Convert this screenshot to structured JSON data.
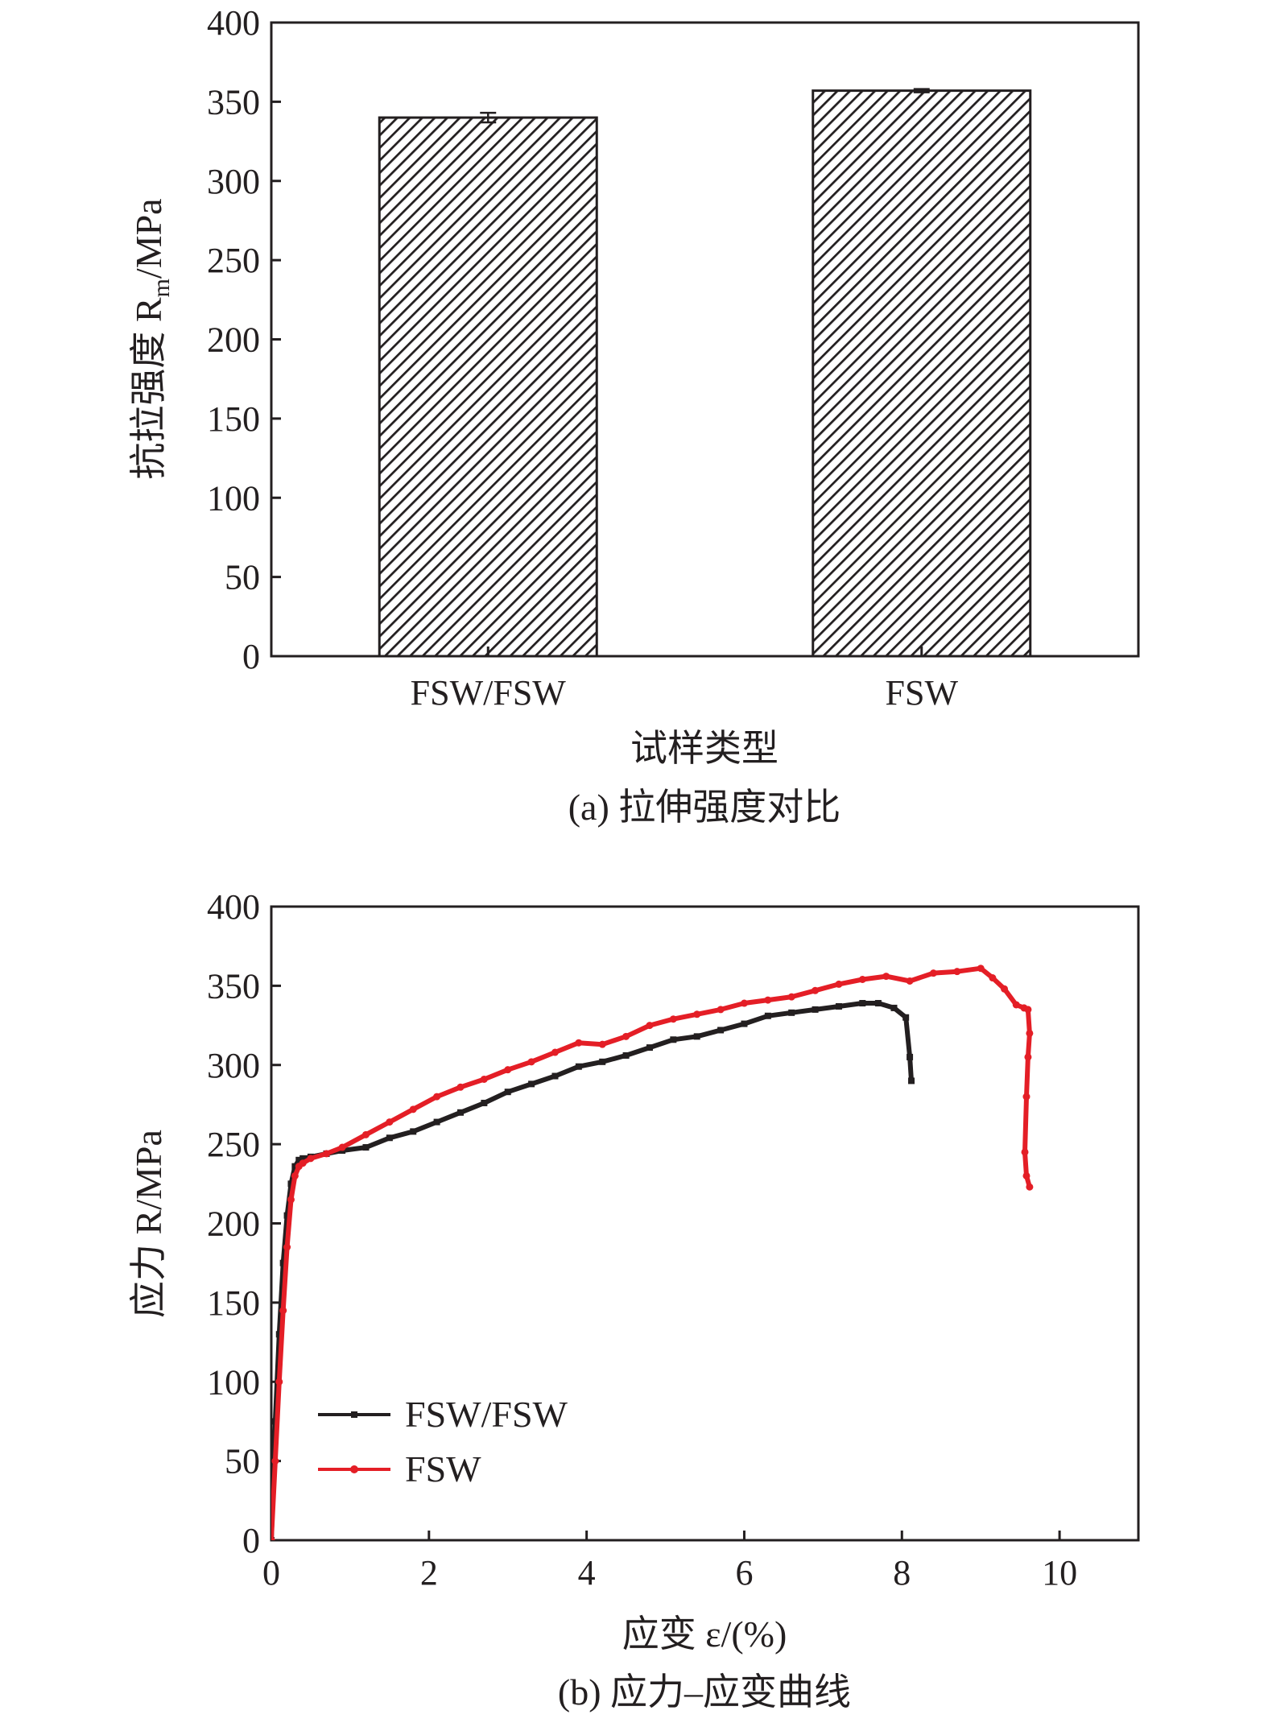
{
  "chart_data": [
    {
      "type": "bar",
      "caption": "(a) 拉伸强度对比",
      "title": "",
      "xlabel": "试样类型",
      "ylabel": "抗拉强度 R",
      "ylabel_sub": "m",
      "ylabel_unit": "/MPa",
      "categories": [
        "FSW/FSW",
        "FSW"
      ],
      "values": [
        340,
        357
      ],
      "errors": [
        3,
        1
      ],
      "ylim": [
        0,
        400
      ],
      "yticks": [
        0,
        50,
        100,
        150,
        200,
        250,
        300,
        350,
        400
      ],
      "fill": "diagonal-hatch",
      "bar_color": "#231f20",
      "grid": false,
      "legend": false
    },
    {
      "type": "line",
      "caption": "(b) 应力–应变曲线",
      "title": "",
      "xlabel": "应变 ε/(%)",
      "ylabel": "应力 R/MPa",
      "xlim": [
        0,
        11
      ],
      "ylim": [
        0,
        400
      ],
      "xticks": [
        0,
        2,
        4,
        6,
        8,
        10
      ],
      "yticks": [
        0,
        50,
        100,
        150,
        200,
        250,
        300,
        350,
        400
      ],
      "grid": false,
      "legend": "center-left",
      "series": [
        {
          "name": "FSW/FSW",
          "color": "#231f20",
          "marker": "square",
          "x": [
            0.0,
            0.05,
            0.1,
            0.15,
            0.2,
            0.25,
            0.3,
            0.35,
            0.4,
            0.5,
            0.7,
            0.9,
            1.2,
            1.5,
            1.8,
            2.1,
            2.4,
            2.7,
            3.0,
            3.3,
            3.6,
            3.9,
            4.2,
            4.5,
            4.8,
            5.1,
            5.4,
            5.7,
            6.0,
            6.3,
            6.6,
            6.9,
            7.2,
            7.5,
            7.7,
            7.9,
            8.05,
            8.1,
            8.12
          ],
          "y": [
            0,
            75,
            130,
            175,
            205,
            225,
            236,
            240,
            241,
            242,
            244,
            246,
            248,
            254,
            258,
            264,
            270,
            276,
            283,
            288,
            293,
            299,
            302,
            306,
            311,
            316,
            318,
            322,
            326,
            331,
            333,
            335,
            337,
            339,
            339,
            336,
            330,
            305,
            290
          ]
        },
        {
          "name": "FSW",
          "color": "#e41e26",
          "marker": "circle",
          "x": [
            0.0,
            0.05,
            0.1,
            0.15,
            0.2,
            0.25,
            0.3,
            0.35,
            0.4,
            0.5,
            0.7,
            0.9,
            1.2,
            1.5,
            1.8,
            2.1,
            2.4,
            2.7,
            3.0,
            3.3,
            3.6,
            3.9,
            4.2,
            4.5,
            4.8,
            5.1,
            5.4,
            5.7,
            6.0,
            6.3,
            6.6,
            6.9,
            7.2,
            7.5,
            7.8,
            8.1,
            8.4,
            8.7,
            9.0,
            9.15,
            9.3,
            9.45,
            9.55,
            9.6,
            9.62,
            9.6,
            9.58,
            9.56,
            9.58,
            9.62
          ],
          "y": [
            0,
            50,
            100,
            145,
            185,
            215,
            230,
            236,
            238,
            241,
            244,
            248,
            256,
            264,
            272,
            280,
            286,
            291,
            297,
            302,
            308,
            314,
            313,
            318,
            325,
            329,
            332,
            335,
            339,
            341,
            343,
            347,
            351,
            354,
            356,
            353,
            358,
            359,
            361,
            355,
            348,
            338,
            336,
            335,
            320,
            305,
            280,
            245,
            230,
            223
          ]
        }
      ]
    }
  ]
}
